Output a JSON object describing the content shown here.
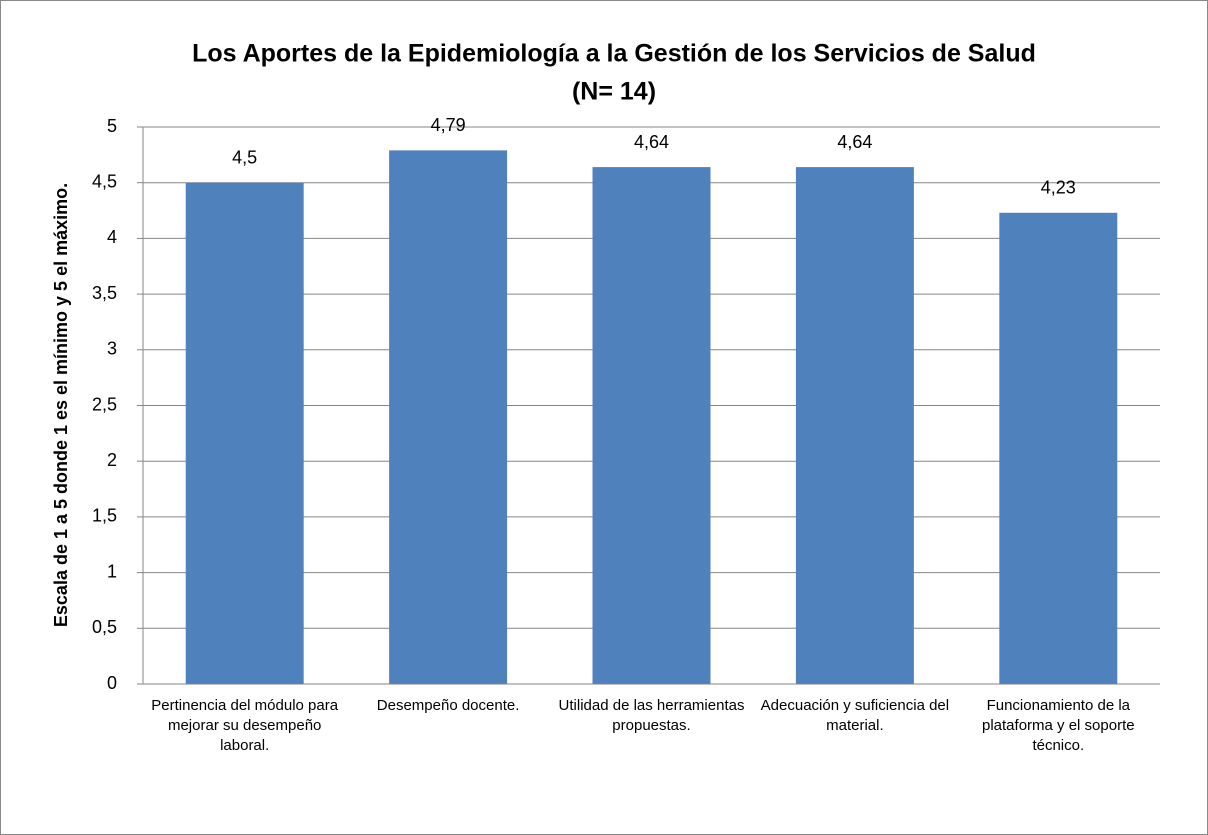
{
  "chart_data": {
    "type": "bar",
    "title": "Los Aportes de la Epidemiología a la Gestión de los Servicios de Salud",
    "subtitle": "(N= 14)",
    "y_label": "Escala  de 1 a 5 donde 1 es el mínimo y 5 el máximo.",
    "categories": [
      "Pertinencia del módulo para mejorar su desempeño laboral.",
      "Desempeño docente.",
      "Utilidad de las herramientas propuestas.",
      "Adecuación y suficiencia del material.",
      "Funcionamiento de la plataforma y el soporte técnico."
    ],
    "values": [
      4.5,
      4.79,
      4.64,
      4.64,
      4.23
    ],
    "value_labels": [
      "4,5",
      "4,79",
      "4,64",
      "4,64",
      "4,23"
    ],
    "color": "#4f81bd",
    "ylim": [
      0,
      5
    ],
    "yticks": [
      0,
      {
        "value": 0.5,
        "label": "0,5"
      },
      1,
      {
        "value": 1.5,
        "label": "1,5"
      },
      2,
      {
        "value": 2.5,
        "label": "2,5"
      },
      3,
      {
        "value": 3.5,
        "label": "3,5"
      },
      4,
      {
        "value": 4.5,
        "label": "4,5"
      },
      5
    ],
    "grid": true
  }
}
